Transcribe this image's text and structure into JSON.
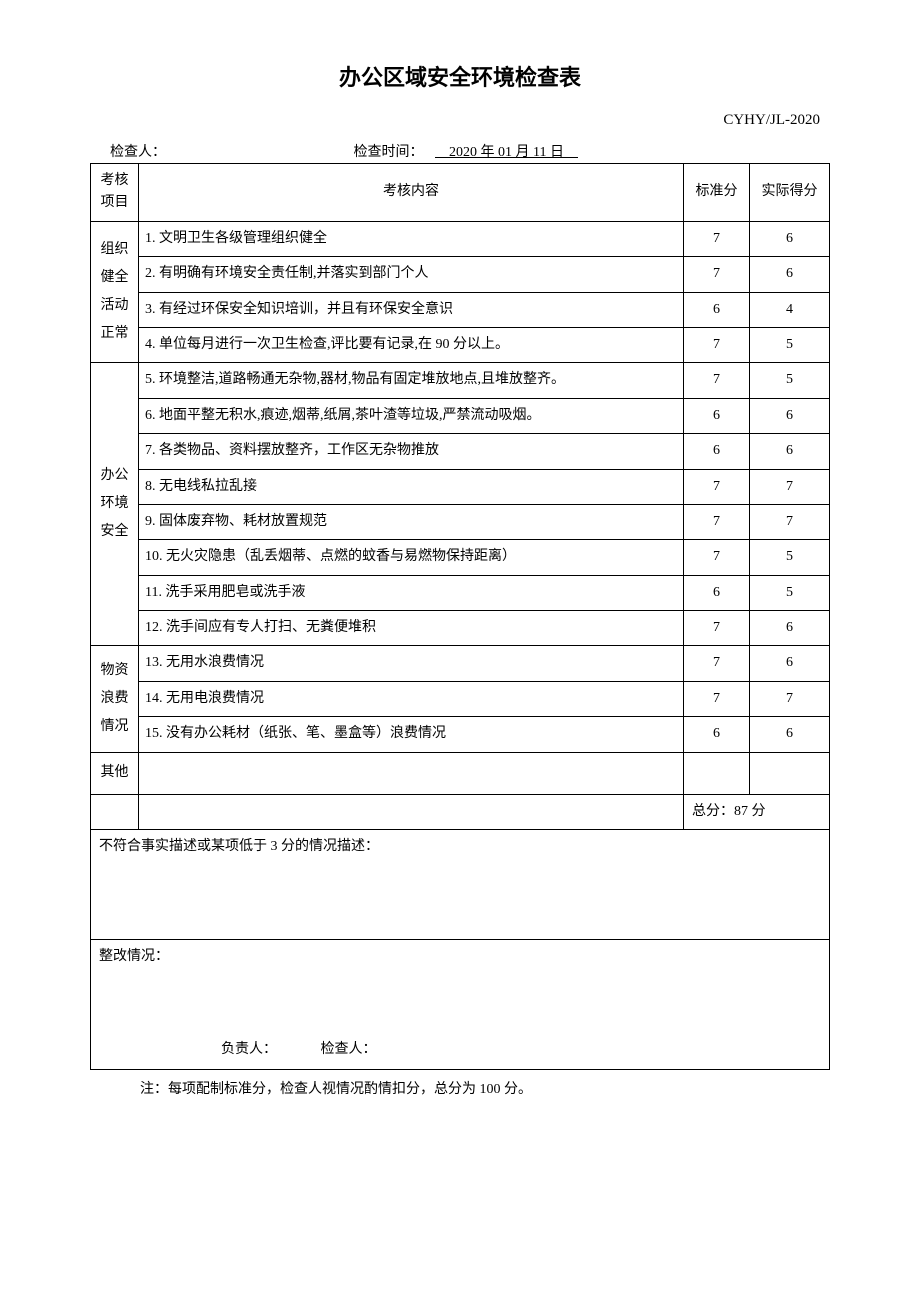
{
  "title": "办公区域安全环境检查表",
  "doc_code": "CYHY/JL-2020",
  "header": {
    "inspector_label": "检查人：",
    "time_label": "检查时间：",
    "time_value": "　2020 年 01 月 11 日　"
  },
  "columns": {
    "category": "考核项目",
    "content": "考核内容",
    "standard": "标准分",
    "actual": "实际得分"
  },
  "sections": [
    {
      "category": "组织健全活动正常",
      "rows": [
        {
          "content": "1. 文明卫生各级管理组织健全",
          "std": "7",
          "actual": "6"
        },
        {
          "content": "2. 有明确有环境安全责任制,并落实到部门个人",
          "std": "7",
          "actual": "6"
        },
        {
          "content": "3. 有经过环保安全知识培训，并且有环保安全意识",
          "std": "6",
          "actual": "4"
        },
        {
          "content": "4. 单位每月进行一次卫生检查,评比要有记录,在 90 分以上。",
          "std": "7",
          "actual": "5"
        }
      ]
    },
    {
      "category": "办公环境安全",
      "rows": [
        {
          "content": "5. 环境整洁,道路畅通无杂物,器材,物品有固定堆放地点,且堆放整齐。",
          "std": "7",
          "actual": "5"
        },
        {
          "content": "6. 地面平整无积水,痕迹,烟蒂,纸屑,茶叶渣等垃圾,严禁流动吸烟。",
          "std": "6",
          "actual": "6"
        },
        {
          "content": "7. 各类物品、资料摆放整齐，工作区无杂物推放",
          "std": "6",
          "actual": "6"
        },
        {
          "content": "8. 无电线私拉乱接",
          "std": "7",
          "actual": "7"
        },
        {
          "content": "9. 固体废弃物、耗材放置规范",
          "std": "7",
          "actual": "7"
        },
        {
          "content": "10. 无火灾隐患（乱丢烟蒂、点燃的蚊香与易燃物保持距离）",
          "std": "7",
          "actual": "5"
        },
        {
          "content": "11. 洗手采用肥皂或洗手液",
          "std": "6",
          "actual": "5"
        },
        {
          "content": "12. 洗手间应有专人打扫、无粪便堆积",
          "std": "7",
          "actual": "6"
        }
      ]
    },
    {
      "category": "物资浪费情况",
      "rows": [
        {
          "content": "13. 无用水浪费情况",
          "std": "7",
          "actual": "6"
        },
        {
          "content": "14. 无用电浪费情况",
          "std": "7",
          "actual": "7"
        },
        {
          "content": "15. 没有办公耗材（纸张、笔、墨盒等）浪费情况",
          "std": "6",
          "actual": "6"
        }
      ]
    }
  ],
  "other_label": "其他",
  "total": {
    "label": "总分：",
    "value": "87 分"
  },
  "description_label": "不符合事实描述或某项低于 3 分的情况描述：",
  "remedy_label": "整改情况：",
  "signatures": {
    "responsible": "负责人：",
    "inspector": "检查人："
  },
  "footnote": "注：每项配制标准分，检查人视情况酌情扣分，总分为 100 分。"
}
